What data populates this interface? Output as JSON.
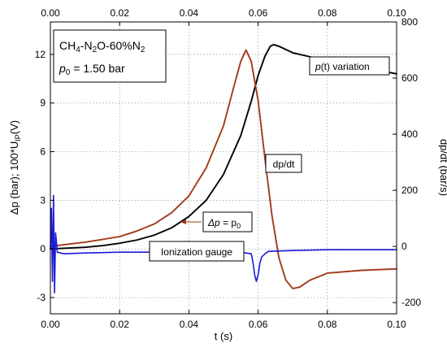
{
  "chart_data": {
    "type": "line",
    "xlabel": "t (s)",
    "ylabel_left": "Δp (bar); 100*U",
    "ylabel_left_sub": "IP",
    "ylabel_left_unit": "(V)",
    "ylabel_right": "dp/dt (bar/s)",
    "xlim": [
      0,
      0.1
    ],
    "ylim_left": [
      -4,
      14
    ],
    "ylim_right": [
      -240,
      800
    ],
    "x_ticks": [
      0.0,
      0.02,
      0.04,
      0.06,
      0.08,
      0.1
    ],
    "x_tick_labels": [
      "0.00",
      "0.02",
      "0.04",
      "0.06",
      "0.08",
      "0.10"
    ],
    "y_left_ticks": [
      -3,
      0,
      3,
      6,
      9,
      12
    ],
    "y_left_tick_labels": [
      "-3",
      "0",
      "3",
      "6",
      "9",
      "12"
    ],
    "y_right_ticks": [
      -200,
      0,
      200,
      400,
      600,
      800
    ],
    "y_right_tick_labels": [
      "-200",
      "0",
      "200",
      "400",
      "600",
      "800"
    ],
    "grid": true,
    "legend_box": {
      "line1_main": "CH",
      "line1_sub1": "4",
      "line1_mid": "-N",
      "line1_sub2": "2",
      "line1_tail": "O-60%N",
      "line1_sub3": "2",
      "line2_prefix": "p",
      "line2_sub": "0",
      "line2_value": " = 1.50 bar",
      "placement": "top-left"
    },
    "annotations": {
      "pressure_prefix": "p",
      "pressure_suffix": "(t) variation",
      "dpdt": "dp/dt",
      "delta_p_eq_a": "Δp",
      "delta_p_eq_b": " = p",
      "delta_p_eq_sub": "0",
      "ionization": "Ionization gauge"
    },
    "series": [
      {
        "axis": "left",
        "color": "#000000",
        "x": [
          0,
          0.005,
          0.01,
          0.015,
          0.02,
          0.025,
          0.03,
          0.035,
          0.04,
          0.045,
          0.05,
          0.055,
          0.058,
          0.06,
          0.062,
          0.0635,
          0.0645,
          0.066,
          0.068,
          0.07,
          0.075,
          0.08,
          0.085,
          0.09,
          0.095,
          0.1
        ],
        "y": [
          0,
          0.05,
          0.1,
          0.2,
          0.35,
          0.55,
          0.85,
          1.3,
          2.0,
          3.0,
          4.6,
          7.0,
          9.1,
          10.7,
          11.9,
          12.5,
          12.6,
          12.5,
          12.3,
          12.1,
          11.85,
          11.6,
          11.4,
          11.2,
          11.0,
          10.8
        ]
      },
      {
        "axis": "right",
        "color": "#a23a1a",
        "x": [
          0,
          0.005,
          0.01,
          0.015,
          0.02,
          0.025,
          0.03,
          0.035,
          0.04,
          0.045,
          0.05,
          0.053,
          0.055,
          0.0565,
          0.058,
          0.06,
          0.062,
          0.064,
          0.066,
          0.068,
          0.07,
          0.072,
          0.075,
          0.08,
          0.09,
          0.1
        ],
        "y": [
          0,
          8,
          15,
          25,
          35,
          55,
          80,
          120,
          180,
          280,
          430,
          570,
          660,
          700,
          660,
          520,
          310,
          110,
          -40,
          -120,
          -150,
          -145,
          -120,
          -95,
          -85,
          -80
        ]
      },
      {
        "axis": "left",
        "color": "#1a1ad8",
        "x": [
          0,
          0.0003,
          0.0006,
          0.0009,
          0.0012,
          0.0015,
          0.002,
          0.004,
          0.01,
          0.02,
          0.03,
          0.04,
          0.05,
          0.055,
          0.058,
          0.0585,
          0.059,
          0.0595,
          0.06,
          0.0605,
          0.061,
          0.062,
          0.063,
          0.07,
          0.08,
          0.09,
          0.1
        ],
        "y": [
          0,
          2.5,
          -2.0,
          3.3,
          -2.7,
          1.0,
          -0.2,
          -0.3,
          -0.25,
          -0.2,
          -0.2,
          -0.2,
          -0.15,
          -0.2,
          -0.3,
          -0.8,
          -1.6,
          -2.0,
          -1.6,
          -0.9,
          -0.5,
          -0.3,
          -0.15,
          -0.1,
          -0.05,
          -0.05,
          -0.05
        ]
      }
    ]
  }
}
